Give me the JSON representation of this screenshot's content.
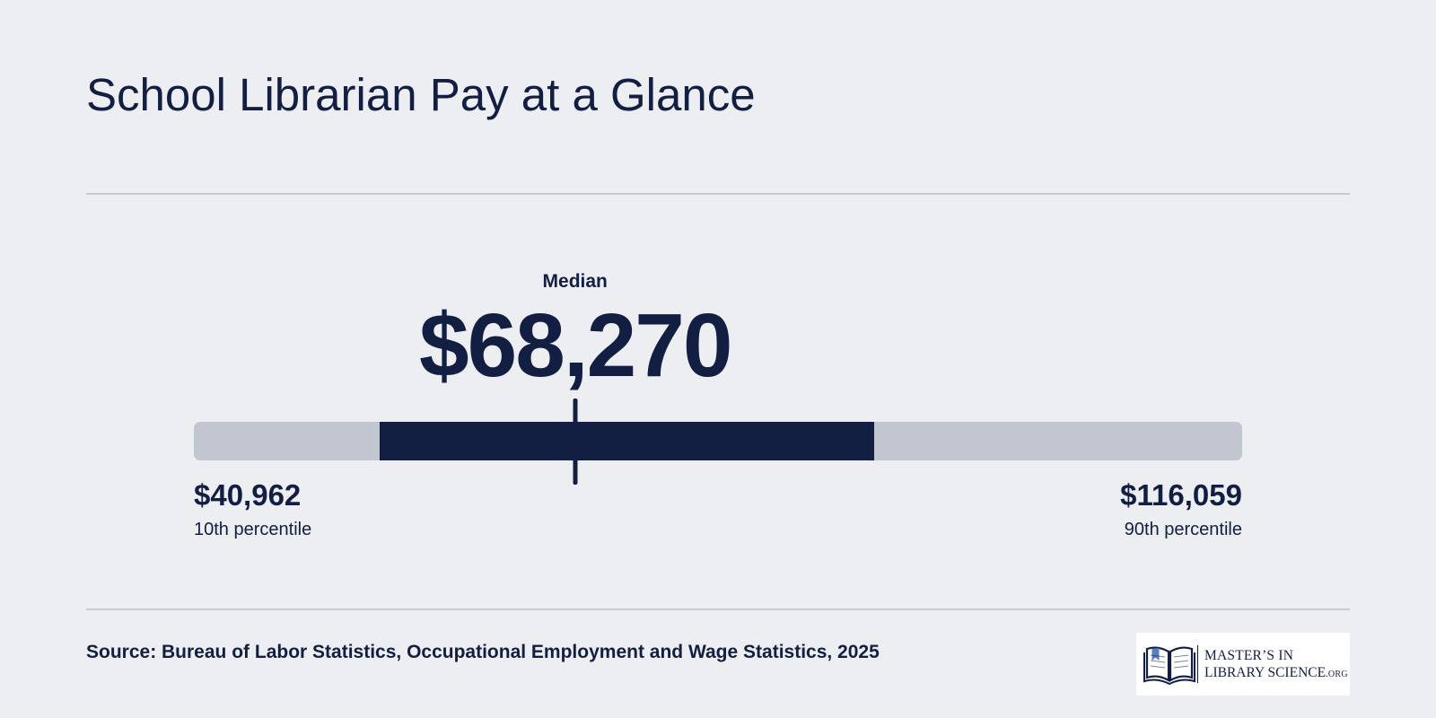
{
  "title": "School Librarian Pay at a Glance",
  "colors": {
    "background": "#edeef2",
    "text": "#121f42",
    "track": "#c2c6d1",
    "band": "#121f42",
    "divider": "#c8cad1"
  },
  "chart_data": {
    "type": "range",
    "min_value": 40962,
    "max_value": 116059,
    "median_value": 68270,
    "band_range": [
      54250,
      89700
    ],
    "median_label": "Median",
    "median_text": "$68,270",
    "low_text": "$40,962",
    "low_caption": "10th percentile",
    "high_text": "$116,059",
    "high_caption": "90th percentile"
  },
  "source": "Source: Bureau of Labor Statistics, Occupational Employment and Wage Statistics, 2025",
  "logo": {
    "line1": "MASTER’S IN",
    "line2": "LIBRARY SCIENCE",
    "suffix": ".ORG"
  }
}
